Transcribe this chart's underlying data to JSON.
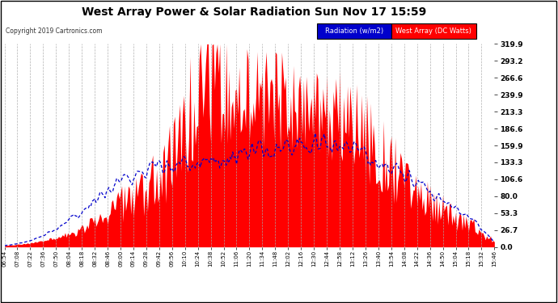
{
  "title": "West Array Power & Solar Radiation Sun Nov 17 15:59",
  "copyright": "Copyright 2019 Cartronics.com",
  "legend_radiation": "Radiation (w/m2)",
  "legend_west": "West Array (DC Watts)",
  "ymin": 0.0,
  "ymax": 319.9,
  "ytick_vals": [
    0.0,
    26.7,
    53.3,
    80.0,
    106.6,
    133.3,
    159.9,
    186.6,
    213.3,
    239.9,
    266.6,
    293.2,
    319.9
  ],
  "ytick_labels": [
    "0.0",
    "26.7",
    "53.3",
    "80.0",
    "106.6",
    "133.3",
    "159.9",
    "186.6",
    "213.3",
    "239.9",
    "266.6",
    "293.2",
    "319.9"
  ],
  "bg_color": "#ffffff",
  "red_color": "#ff0000",
  "blue_color": "#0000cc",
  "grid_color": "#aaaaaa",
  "title_color": "#000000",
  "legend_blue_bg": "#0000cc",
  "legend_red_bg": "#ff0000",
  "time_labels": [
    "06:54",
    "07:08",
    "07:22",
    "07:36",
    "07:50",
    "08:04",
    "08:18",
    "08:32",
    "08:46",
    "09:00",
    "09:14",
    "09:28",
    "09:42",
    "09:56",
    "10:10",
    "10:24",
    "10:38",
    "10:52",
    "11:06",
    "11:20",
    "11:34",
    "11:48",
    "12:02",
    "12:16",
    "12:30",
    "12:44",
    "12:58",
    "13:12",
    "13:26",
    "13:40",
    "13:54",
    "14:08",
    "14:22",
    "14:36",
    "14:50",
    "15:04",
    "15:18",
    "15:32",
    "15:46"
  ]
}
